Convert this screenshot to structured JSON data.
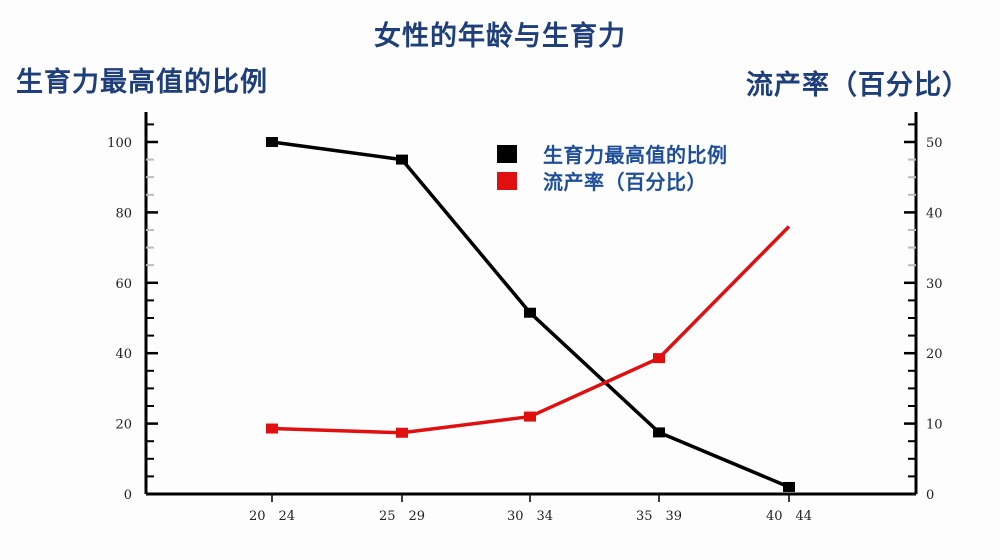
{
  "chart_data": {
    "type": "line",
    "title": "女性的年龄与生育力",
    "xlabel": "",
    "ylabel": "生育力最高值的比例",
    "ylabel_right": "流产率（百分比）",
    "categories": [
      "20 24",
      "25 29",
      "30 34",
      "35 39",
      "40 44"
    ],
    "series": [
      {
        "name": "生育力最高值的比例",
        "axis": "left",
        "color": "#000000",
        "values": [
          100,
          95,
          51.5,
          17.5,
          2
        ]
      },
      {
        "name": "流产率（百分比）",
        "axis": "right",
        "color": "#e01010",
        "values": [
          9.3,
          8.7,
          11,
          19.3,
          38
        ]
      }
    ],
    "ylim": [
      0,
      100
    ],
    "ylim_right": [
      0,
      50
    ],
    "yticks": [
      0,
      20,
      40,
      60,
      80,
      100
    ],
    "yticks_right": [
      0,
      10,
      20,
      30,
      40,
      50
    ],
    "grid": false,
    "legend_position": "upper center"
  },
  "title": "女性的年龄与生育力",
  "y_title_left": "生育力最高值的比例",
  "y_title_right": "流产率（百分比）",
  "legend": [
    {
      "label": "生育力最高值的比例",
      "color": "#000000"
    },
    {
      "label": "流产率（百分比）",
      "color": "#e01010"
    }
  ],
  "yticks_left_labels": [
    "0",
    "20",
    "40",
    "60",
    "80",
    "100"
  ],
  "yticks_right_labels": [
    "0",
    "10",
    "20",
    "30",
    "40",
    "50"
  ],
  "xtick_labels": [
    "20 24",
    "25 29",
    "30 34",
    "35 39",
    "40 44"
  ]
}
